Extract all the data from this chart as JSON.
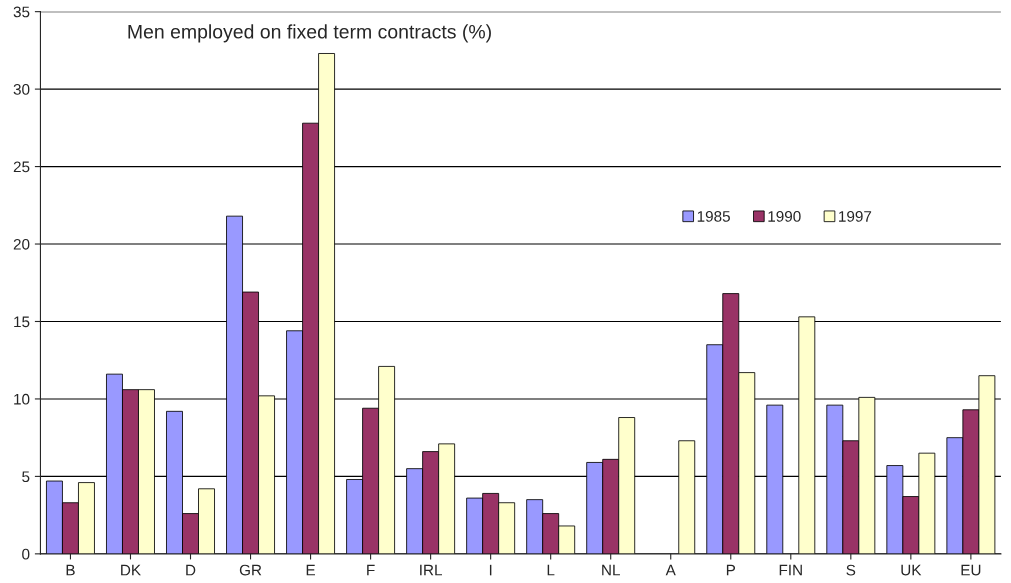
{
  "chart_data": {
    "type": "bar",
    "title": "Men employed on fixed term contracts (%)",
    "categories": [
      "B",
      "DK",
      "D",
      "GR",
      "E",
      "F",
      "IRL",
      "I",
      "L",
      "NL",
      "A",
      "P",
      "FIN",
      "S",
      "UK",
      "EU"
    ],
    "series": [
      {
        "name": "1985",
        "color": "#9999ff",
        "values": [
          4.7,
          11.6,
          9.2,
          21.8,
          14.4,
          4.8,
          5.5,
          3.6,
          3.5,
          5.9,
          null,
          13.5,
          9.6,
          9.6,
          5.7,
          7.5
        ]
      },
      {
        "name": "1990",
        "color": "#993366",
        "values": [
          3.3,
          10.6,
          2.6,
          16.9,
          27.8,
          9.4,
          6.6,
          3.9,
          2.6,
          6.1,
          null,
          16.8,
          null,
          7.3,
          3.7,
          9.3
        ]
      },
      {
        "name": "1997",
        "color": "#ffffcc",
        "values": [
          4.6,
          10.6,
          4.2,
          10.2,
          32.3,
          12.1,
          7.1,
          3.3,
          1.8,
          8.8,
          7.3,
          11.7,
          15.3,
          10.1,
          6.5,
          11.5
        ]
      }
    ],
    "ylim": [
      0,
      35
    ],
    "yticks": [
      0,
      5,
      10,
      15,
      20,
      25,
      30,
      35
    ],
    "grid": "y",
    "legend": "right"
  }
}
